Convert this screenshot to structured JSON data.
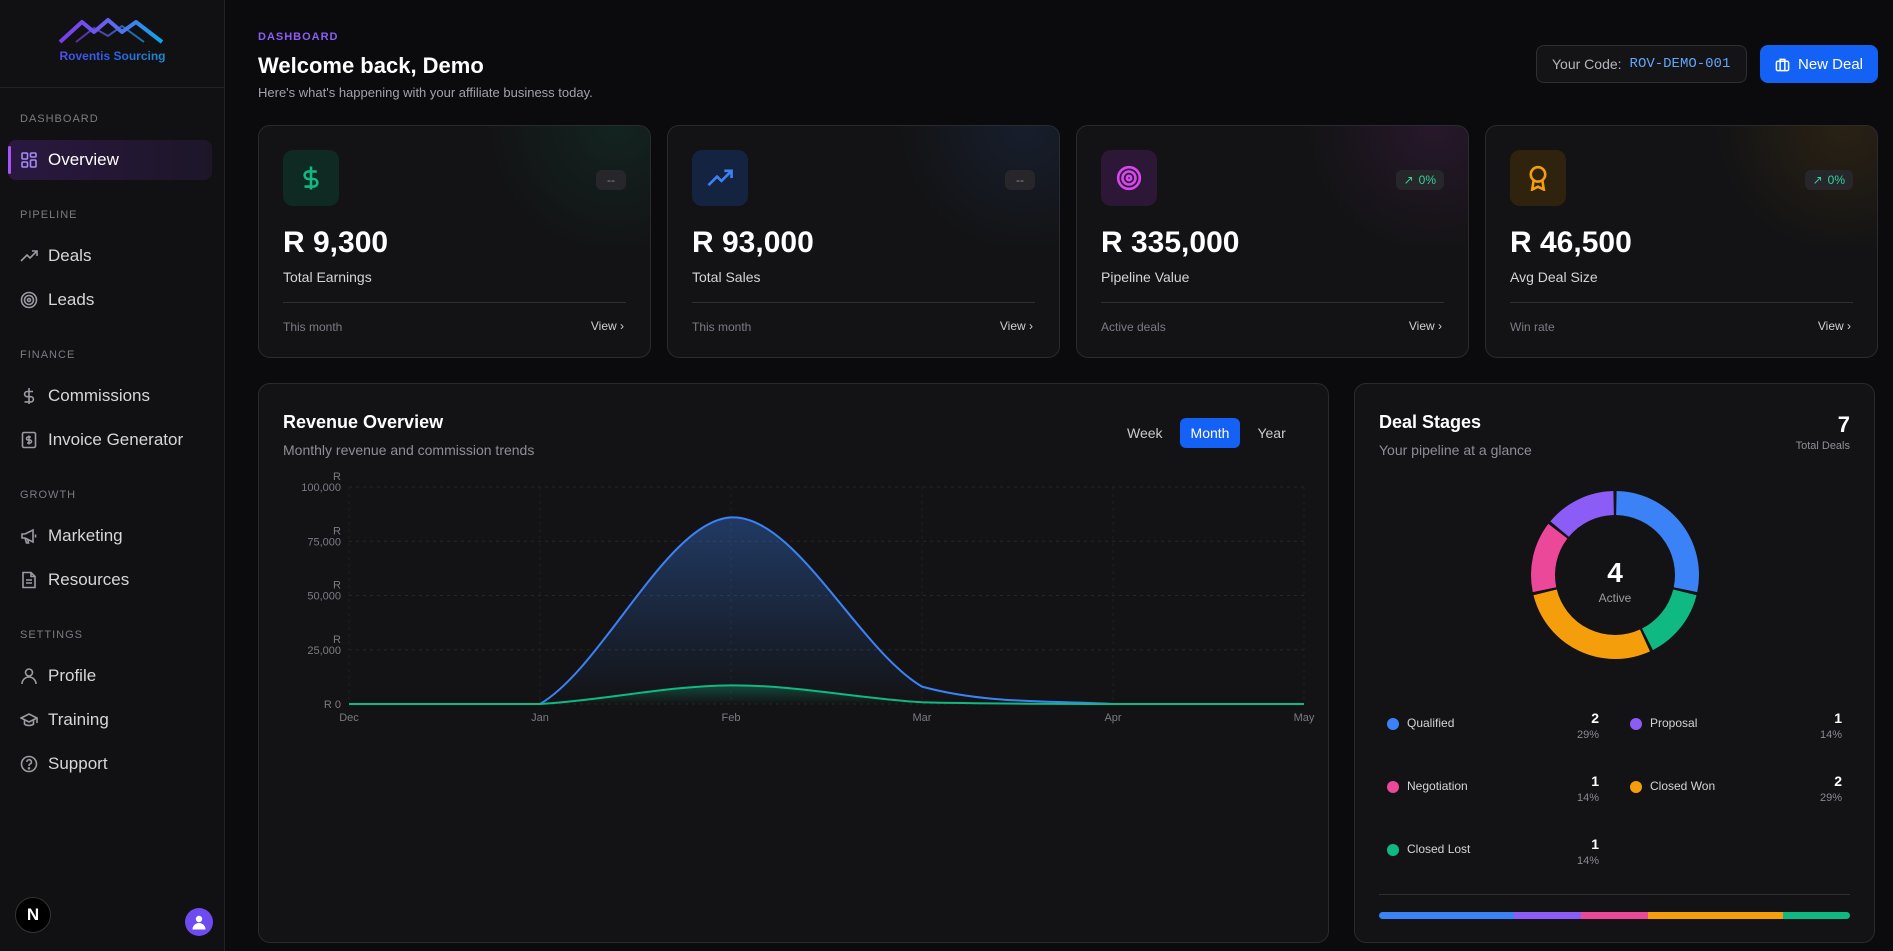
{
  "sidebar": {
    "logo_text": "Roventis Sourcing",
    "sections": [
      {
        "label": "DASHBOARD",
        "items": [
          {
            "label": "Overview",
            "icon": "grid-icon",
            "active": true
          }
        ]
      },
      {
        "label": "PIPELINE",
        "items": [
          {
            "label": "Deals",
            "icon": "trending-up-icon"
          },
          {
            "label": "Leads",
            "icon": "target-icon"
          }
        ]
      },
      {
        "label": "FINANCE",
        "items": [
          {
            "label": "Commissions",
            "icon": "dollar-icon"
          },
          {
            "label": "Invoice Generator",
            "icon": "invoice-icon"
          }
        ]
      },
      {
        "label": "GROWTH",
        "items": [
          {
            "label": "Marketing",
            "icon": "megaphone-icon"
          },
          {
            "label": "Resources",
            "icon": "file-icon"
          }
        ]
      },
      {
        "label": "SETTINGS",
        "items": [
          {
            "label": "Profile",
            "icon": "user-icon"
          },
          {
            "label": "Training",
            "icon": "graduation-cap-icon"
          },
          {
            "label": "Support",
            "icon": "help-circle-icon"
          }
        ]
      }
    ],
    "badge_letter": "N"
  },
  "header": {
    "kicker": "DASHBOARD",
    "title": "Welcome back, Demo",
    "subtitle": "Here's what's happening with your affiliate business today.",
    "code_label": "Your Code:",
    "code_value": "ROV-DEMO-001",
    "new_deal_label": "New Deal"
  },
  "stats": [
    {
      "value": "R 9,300",
      "label": "Total Earnings",
      "badge": "--",
      "footer": "This month",
      "view": "View",
      "icon": "dollar-icon",
      "accent": "#10b981"
    },
    {
      "value": "R 93,000",
      "label": "Total Sales",
      "badge": "--",
      "footer": "This month",
      "view": "View",
      "icon": "trending-up-icon",
      "accent": "#3b82f6"
    },
    {
      "value": "R 335,000",
      "label": "Pipeline Value",
      "badge": "0%",
      "footer": "Active deals",
      "view": "View",
      "icon": "target-icon",
      "accent": "#d946ef"
    },
    {
      "value": "R 46,500",
      "label": "Avg Deal Size",
      "badge": "0%",
      "footer": "Win rate",
      "view": "View",
      "icon": "award-icon",
      "accent": "#f59e0b"
    }
  ],
  "revenue": {
    "title": "Revenue Overview",
    "subtitle": "Monthly revenue and commission trends",
    "tabs": [
      "Week",
      "Month",
      "Year"
    ],
    "active_tab": "Month"
  },
  "deal_stages": {
    "title": "Deal Stages",
    "subtitle": "Your pipeline at a glance",
    "total": "7",
    "total_label": "Total Deals",
    "center_value": "4",
    "center_label": "Active",
    "stages": [
      {
        "name": "Qualified",
        "count": 2,
        "pct": "29%",
        "color": "#3b82f6"
      },
      {
        "name": "Proposal",
        "count": 1,
        "pct": "14%",
        "color": "#8b5cf6"
      },
      {
        "name": "Negotiation",
        "count": 1,
        "pct": "14%",
        "color": "#ec4899"
      },
      {
        "name": "Closed Won",
        "count": 2,
        "pct": "29%",
        "color": "#f59e0b"
      },
      {
        "name": "Closed Lost",
        "count": 1,
        "pct": "14%",
        "color": "#10b981"
      }
    ]
  },
  "chart_data": [
    {
      "type": "area",
      "x": [
        "Dec",
        "Jan",
        "Feb",
        "Mar",
        "Apr",
        "May"
      ],
      "ylim": [
        0,
        100000
      ],
      "yticks": [
        "R 0",
        "R 25,000",
        "R 50,000",
        "R 75,000",
        "R 100,000"
      ],
      "series": [
        {
          "name": "",
          "values": [
            0,
            0,
            86000,
            8000,
            0,
            0
          ],
          "color": "#3b82f6"
        },
        {
          "name": "",
          "values": [
            0,
            0,
            8600,
            800,
            0,
            0
          ],
          "color": "#10b981"
        }
      ]
    },
    {
      "type": "pie",
      "categories": [
        "Qualified",
        "Proposal",
        "Negotiation",
        "Closed Won",
        "Closed Lost"
      ],
      "values": [
        2,
        1,
        1,
        2,
        1
      ]
    }
  ]
}
